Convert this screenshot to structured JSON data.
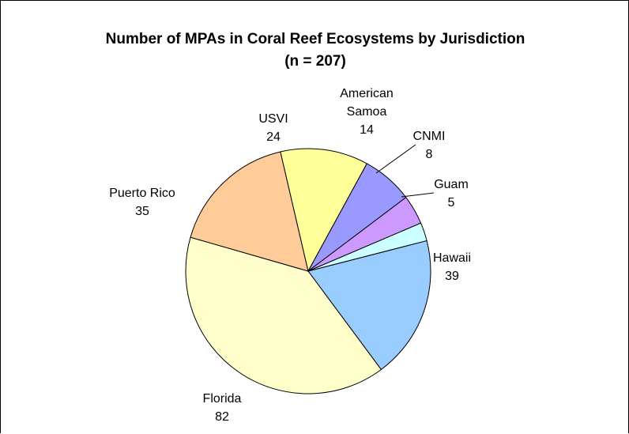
{
  "chart_data": {
    "type": "pie",
    "title": "Number of MPAs in Coral Reef Ecosystems by Jurisdiction",
    "subtitle": "(n = 207)",
    "slices": [
      {
        "label": "Hawaii",
        "value": 39,
        "color": "#99ccff"
      },
      {
        "label": "Florida",
        "value": 82,
        "color": "#ffffcc"
      },
      {
        "label": "Puerto Rico",
        "value": 35,
        "color": "#ffcc99"
      },
      {
        "label": "USVI",
        "value": 24,
        "color": "#ffff99"
      },
      {
        "label": "American Samoa",
        "value": 14,
        "color": "#9999ff"
      },
      {
        "label": "CNMI",
        "value": 8,
        "color": "#cc99ff"
      },
      {
        "label": "Guam",
        "value": 5,
        "color": "#ccffff"
      }
    ],
    "legend": "none",
    "label_style": "category name and value, outside slices"
  }
}
